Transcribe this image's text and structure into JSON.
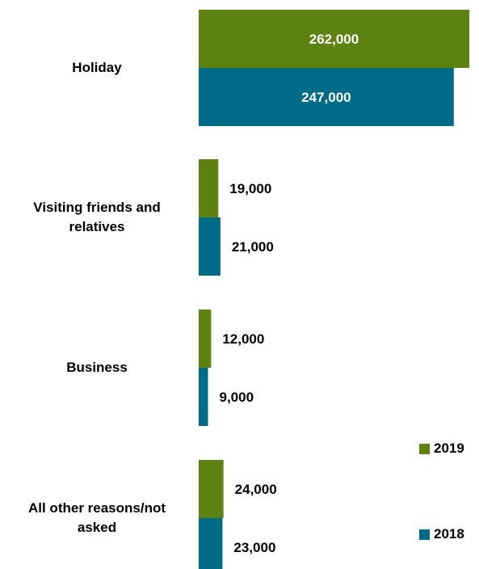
{
  "chart_data": {
    "type": "bar",
    "orientation": "horizontal",
    "categories": [
      "Holiday",
      "Visiting friends and relatives",
      "Business",
      "All other reasons/not asked"
    ],
    "category_lines": [
      [
        "Holiday"
      ],
      [
        "Visiting friends and",
        "relatives"
      ],
      [
        "Business"
      ],
      [
        "All other reasons/not",
        "asked"
      ]
    ],
    "series": [
      {
        "name": "2019",
        "color": "#5e8212",
        "values": [
          262000,
          19000,
          12000,
          24000
        ],
        "labels": [
          "262,000",
          "19,000",
          "12,000",
          "24,000"
        ]
      },
      {
        "name": "2018",
        "color": "#006b87",
        "values": [
          247000,
          21000,
          9000,
          23000
        ],
        "labels": [
          "247,000",
          "21,000",
          "9,000",
          "23,000"
        ]
      }
    ],
    "xlim": [
      0,
      262000
    ],
    "gridlines": false,
    "legend_position": "right"
  }
}
